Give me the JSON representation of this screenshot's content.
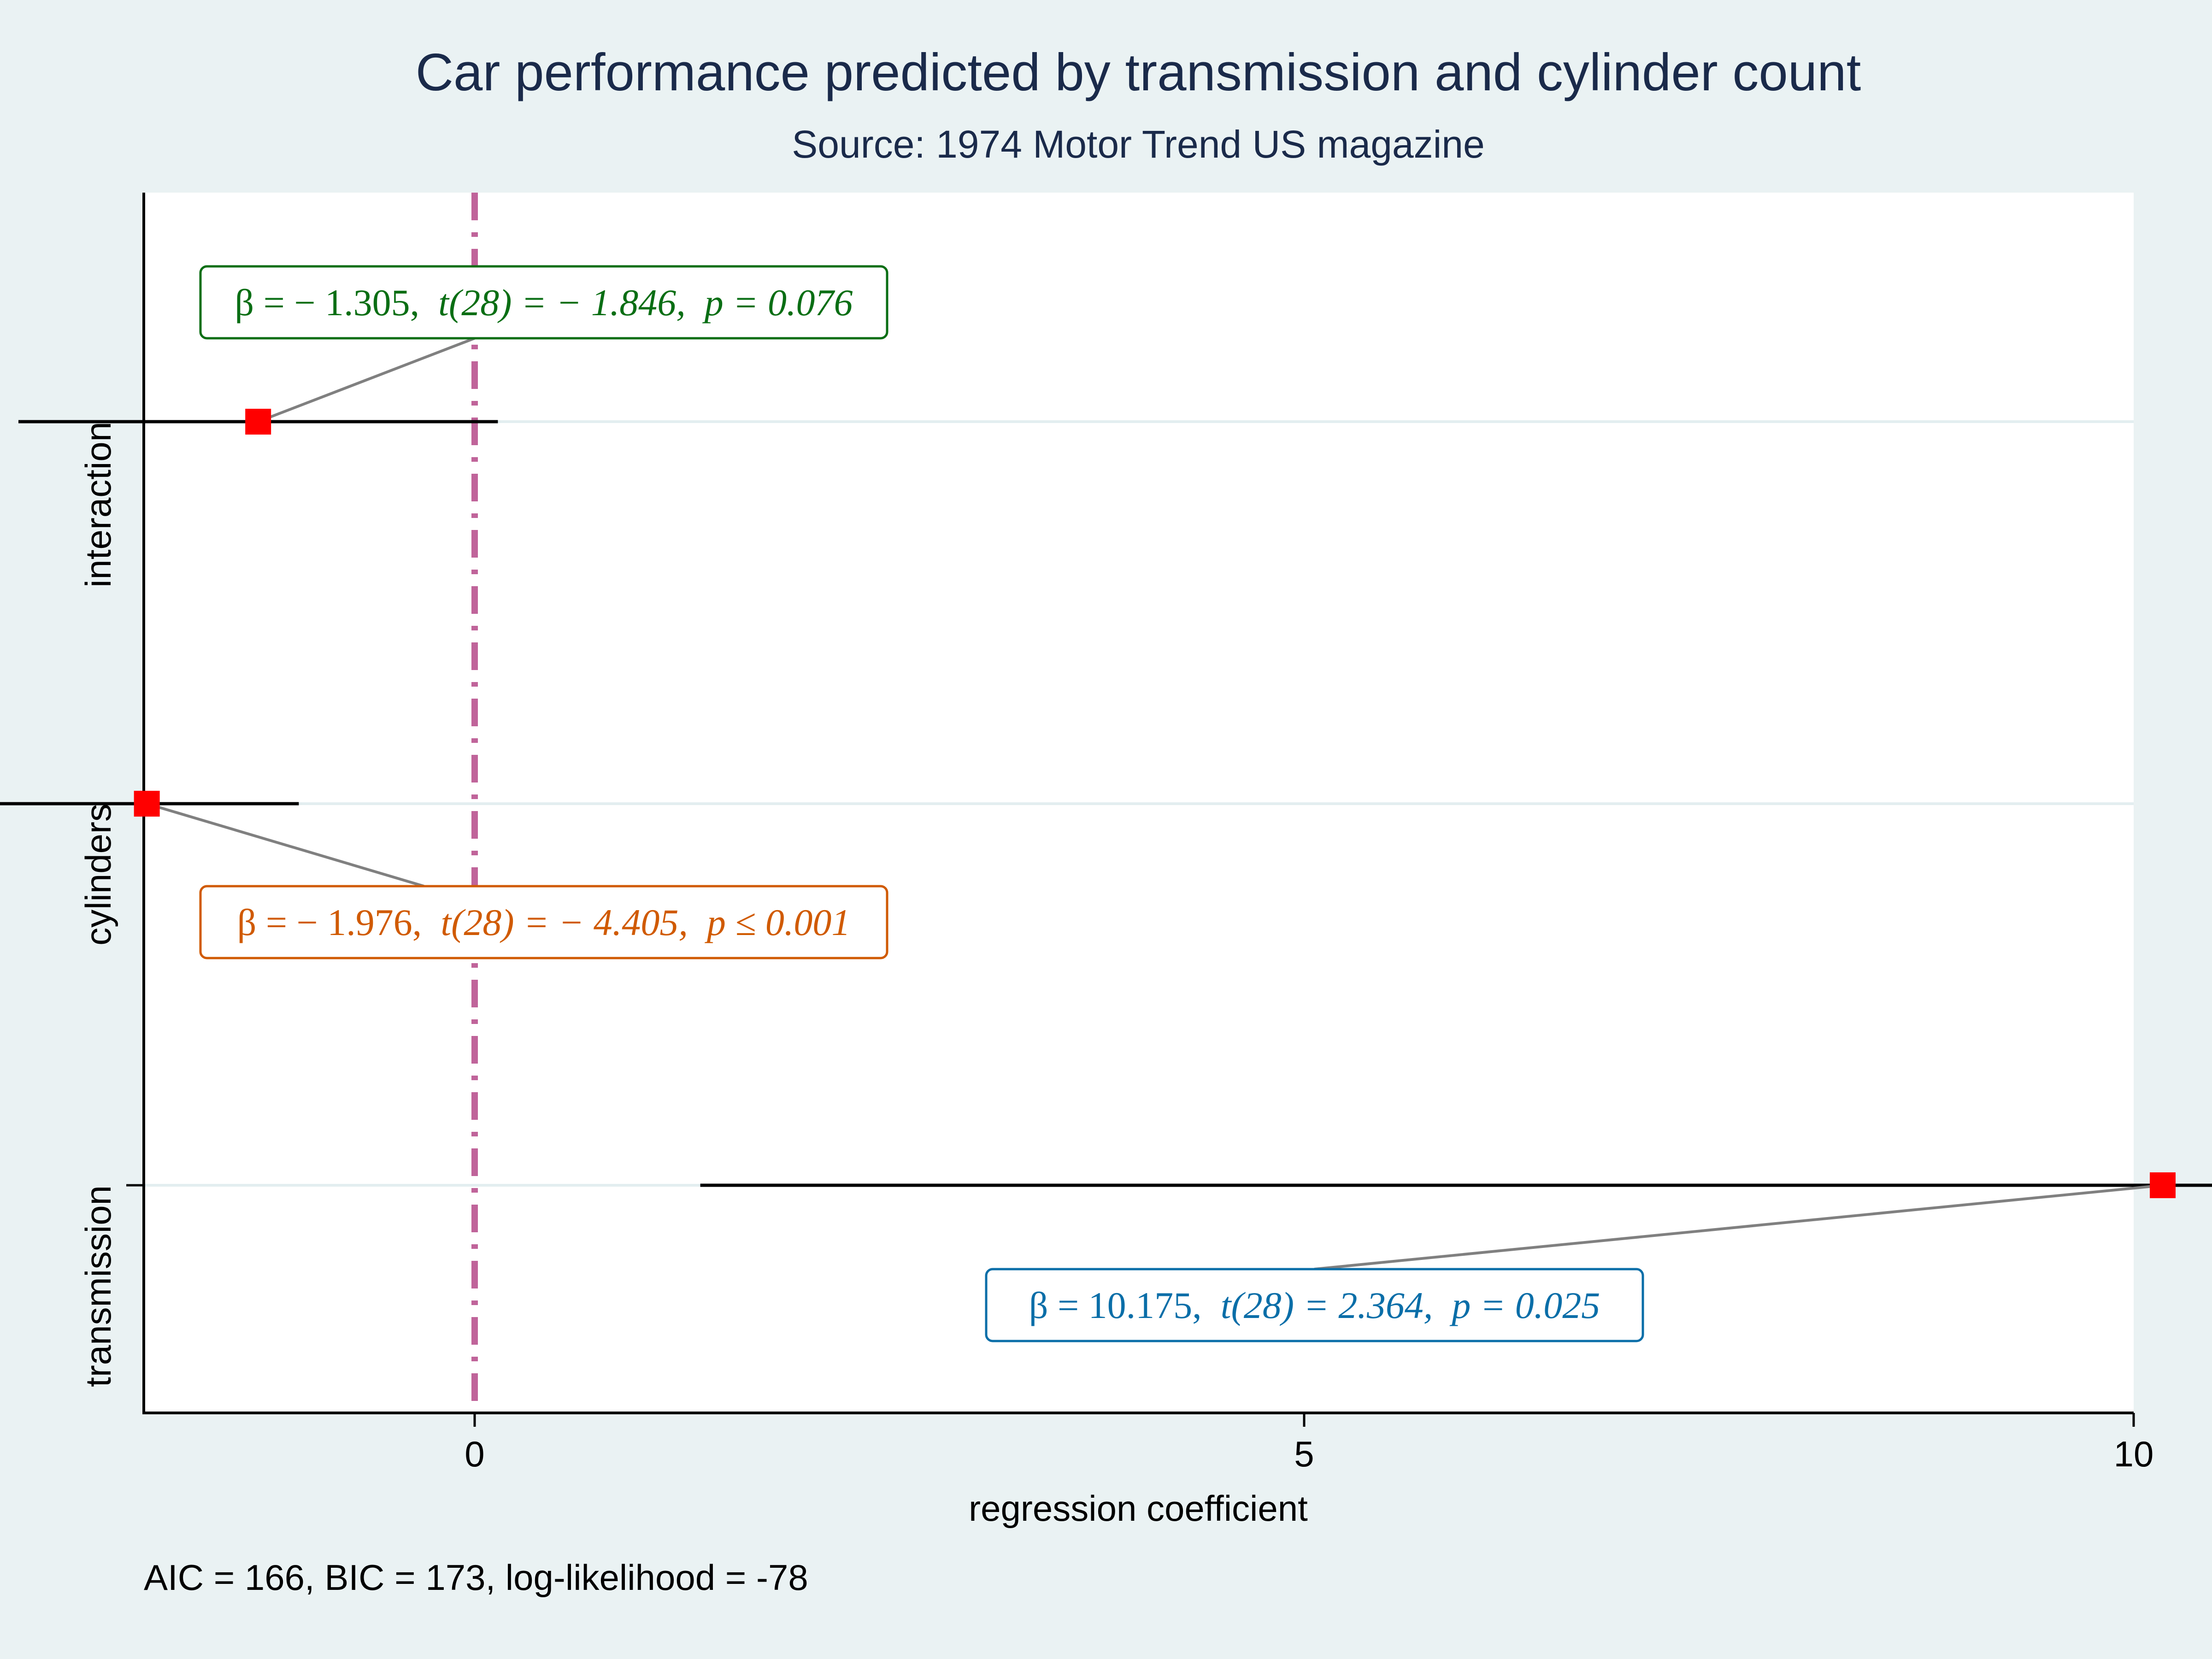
{
  "chart_data": {
    "type": "scatter",
    "subtype": "coefficient-plot",
    "title": "Car performance predicted by transmission and cylinder count",
    "subtitle": "Source: 1974 Motor Trend US magazine",
    "xlabel": "regression coefficient",
    "xlim": [
      -4,
      20
    ],
    "x_ticks": [
      0,
      5,
      10,
      15,
      20
    ],
    "reference_line": 0,
    "grid": "horizontal",
    "colors": {
      "background": "#eaf2f3",
      "plot_background": "#ffffff",
      "point": "#ff0000",
      "reference_line": "#c0649a",
      "interaction": "#0a6e14",
      "cylinders": "#d05a00",
      "transmission": "#0a6ea8"
    },
    "categories": [
      "interaction",
      "cylinders",
      "transmission"
    ],
    "series": [
      {
        "name": "interaction",
        "estimate": -1.305,
        "ci": [
          -2.75,
          0.14
        ],
        "annotation": {
          "beta": "β = − 1.305,",
          "t": "t(28) = − 1.846,",
          "p": "p = 0.076"
        }
      },
      {
        "name": "cylinders",
        "estimate": -1.976,
        "ci": [
          -2.9,
          -1.06
        ],
        "annotation": {
          "beta": "β = − 1.976,",
          "t": "t(28) = − 4.405,",
          "p": "p ≤ 0.001"
        }
      },
      {
        "name": "transmission",
        "estimate": 10.175,
        "ci": [
          1.36,
          18.99
        ],
        "annotation": {
          "beta": "β = 10.175,",
          "t": "t(28) = 2.364,",
          "p": "p = 0.025"
        }
      }
    ],
    "note": "AIC = 166, BIC = 173, log-likelihood = -78"
  }
}
